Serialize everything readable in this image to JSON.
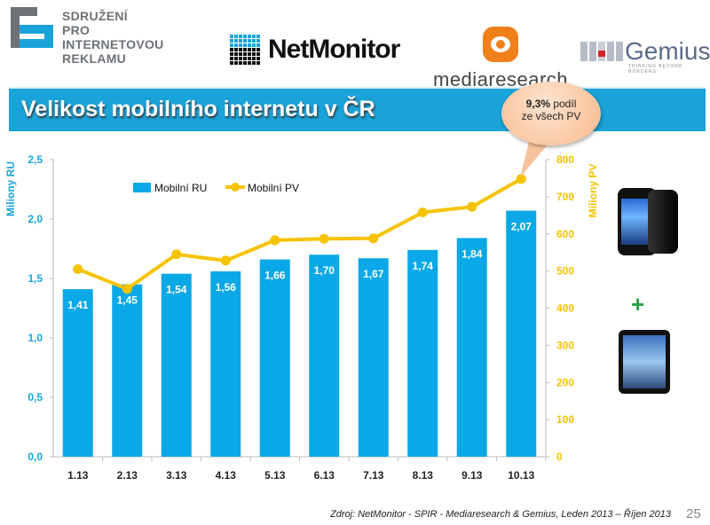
{
  "logos": {
    "spir": [
      "SDRUŽENÍ",
      "PRO INTERNETOVOU",
      "REKLAMU"
    ],
    "netmonitor": "NetMonitor",
    "mediaresearch": "mediaresearch",
    "gemius": "Gemius",
    "gemius_tagline": "THINKING BEYOND BORDERS"
  },
  "title": "Velikost mobilního internetu v ČR",
  "callout": {
    "line1_bold": "9,3%",
    "line1_rest": " podíl",
    "line2": "ze všech PV"
  },
  "footer": "Zdroj: NetMonitor - SPIR - Mediaresearch & Gemius, Leden 2013 – Říjen 2013",
  "page_number": "25",
  "plus_sign": "+",
  "colors": {
    "bar": "#0aa8e6",
    "line": "#f6c300",
    "title_bg": "#1aa3d9"
  },
  "chart_data": {
    "type": "bar+line",
    "categories": [
      "1.13",
      "2.13",
      "3.13",
      "4.13",
      "5.13",
      "6.13",
      "7.13",
      "8.13",
      "9.13",
      "10.13"
    ],
    "series": [
      {
        "name": "Mobilní RU",
        "type": "bar",
        "axis": "left",
        "values": [
          1.41,
          1.45,
          1.54,
          1.56,
          1.66,
          1.7,
          1.67,
          1.74,
          1.84,
          2.07
        ],
        "labels": [
          "1,41",
          "1,45",
          "1,54",
          "1,56",
          "1,66",
          "1,70",
          "1,67",
          "1,74",
          "1,84",
          "2,07"
        ]
      },
      {
        "name": "Mobilní PV",
        "type": "line",
        "axis": "right",
        "values": [
          505,
          452,
          545,
          528,
          583,
          587,
          588,
          658,
          673,
          748
        ]
      }
    ],
    "ylabel_left": "Miliony RU",
    "ylabel_right": "Miliony PV",
    "ylim_left": [
      0,
      2.5
    ],
    "ylim_right": [
      0,
      800
    ],
    "yticks_left": [
      "0,0",
      "0,5",
      "1,0",
      "1,5",
      "2,0",
      "2,5"
    ],
    "yticks_right": [
      "0",
      "100",
      "200",
      "300",
      "400",
      "500",
      "600",
      "700",
      "800"
    ],
    "legend_position": "top-left",
    "grid": false
  }
}
